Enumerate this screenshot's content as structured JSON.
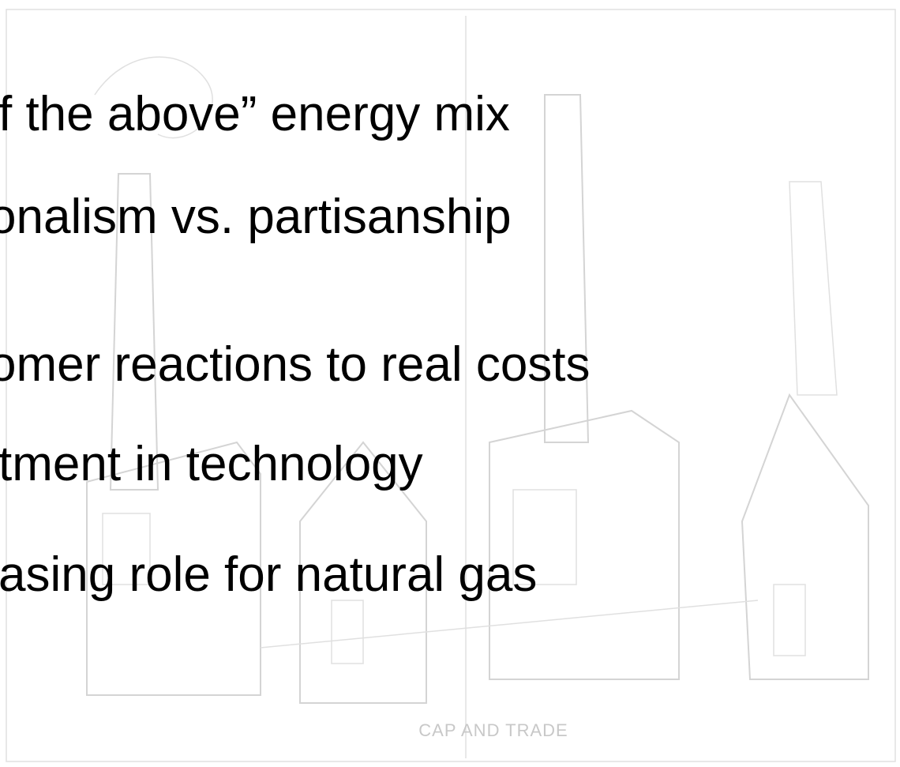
{
  "slide": {
    "bullets": [
      "f the above” energy mix",
      "onalism vs. partisanship",
      "omer reactions to real costs",
      "tment in technology",
      "asing role for natural gas"
    ],
    "illustration_caption": "CAP AND TRADE"
  }
}
